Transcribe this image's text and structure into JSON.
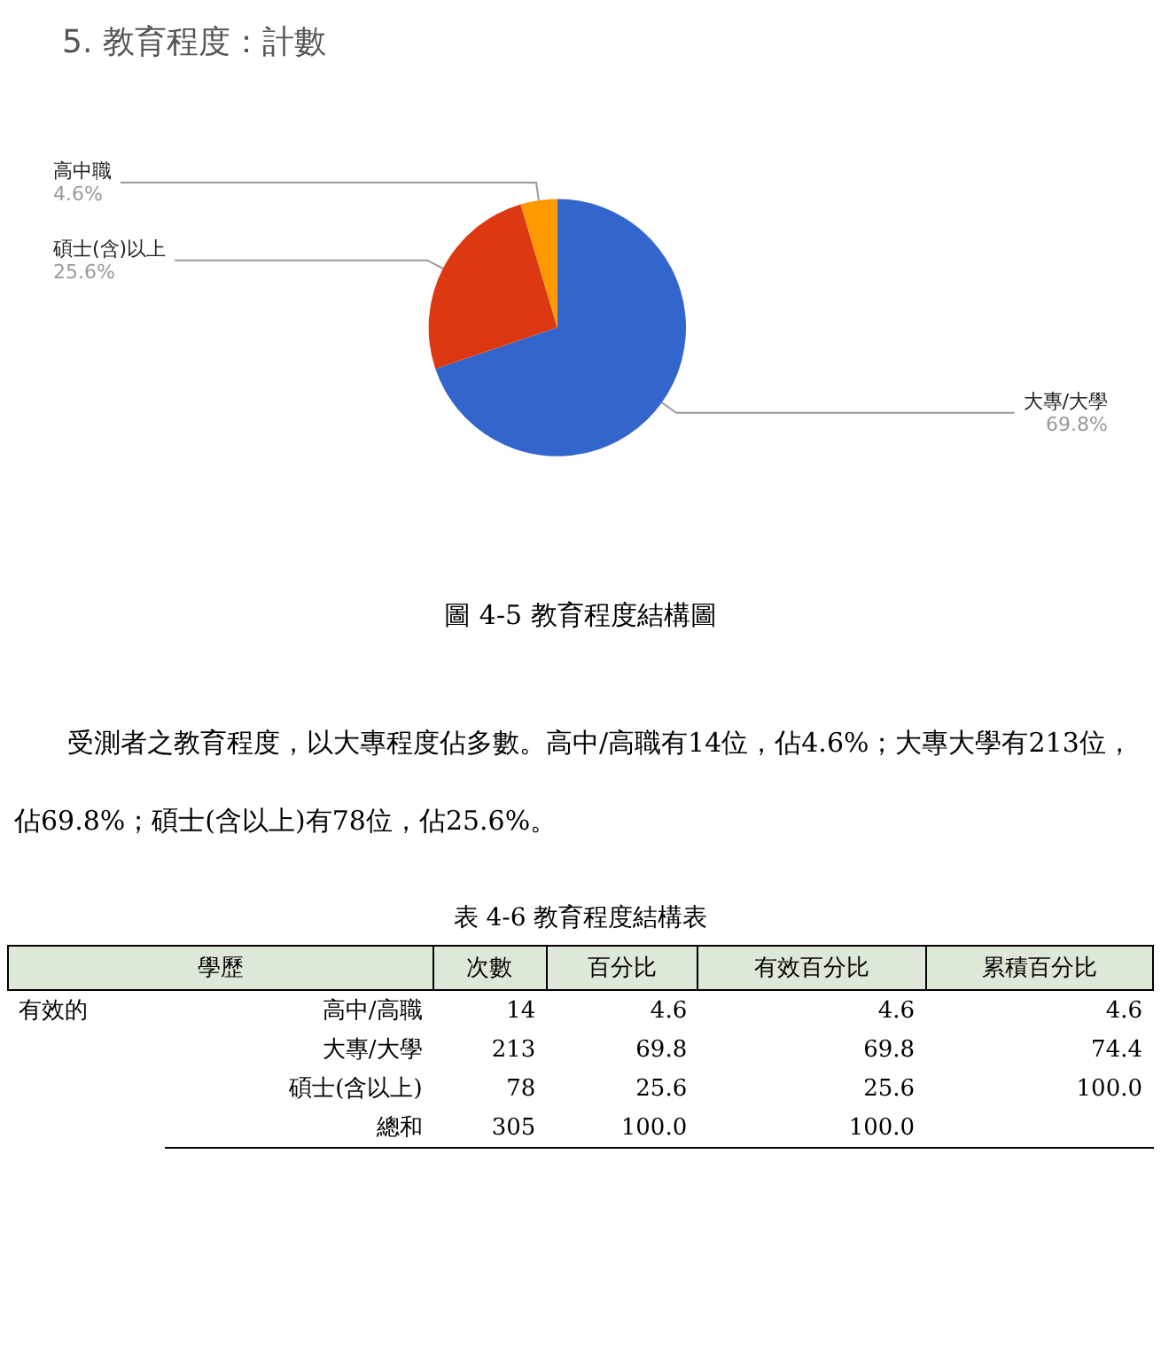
{
  "chart_data": {
    "type": "pie",
    "title": "5. 教育程度：計數",
    "categories": [
      "大專/大學",
      "碩士(含)以上",
      "高中職"
    ],
    "values": [
      69.8,
      25.6,
      4.6
    ],
    "colors": [
      "#3366cc",
      "#dc3912",
      "#ff9900"
    ],
    "value_labels": [
      "69.8%",
      "25.6%",
      "4.6%"
    ],
    "legend": false,
    "annotations": [
      "圖 4-5  教育程度結構圖",
      "受測者之教育程度，以大專程度佔多數。高中/高職有14位，佔4.6%；大專大學有213位，佔69.8%；碩士(含以上)有78位，佔25.6%。",
      "表 4-6 教育程度結構表",
      "學歷",
      "次數",
      "百分比",
      "有效百分比",
      "累積百分比",
      "有效的",
      "高中/高職",
      "14",
      "4.6",
      "4.6",
      "4.6",
      "大專/大學",
      "213",
      "69.8",
      "69.8",
      "74.4",
      "碩士(含以上)",
      "78",
      "25.6",
      "25.6",
      "100.0",
      "總和",
      "305",
      "100.0",
      "100.0",
      null
    ]
  }
}
